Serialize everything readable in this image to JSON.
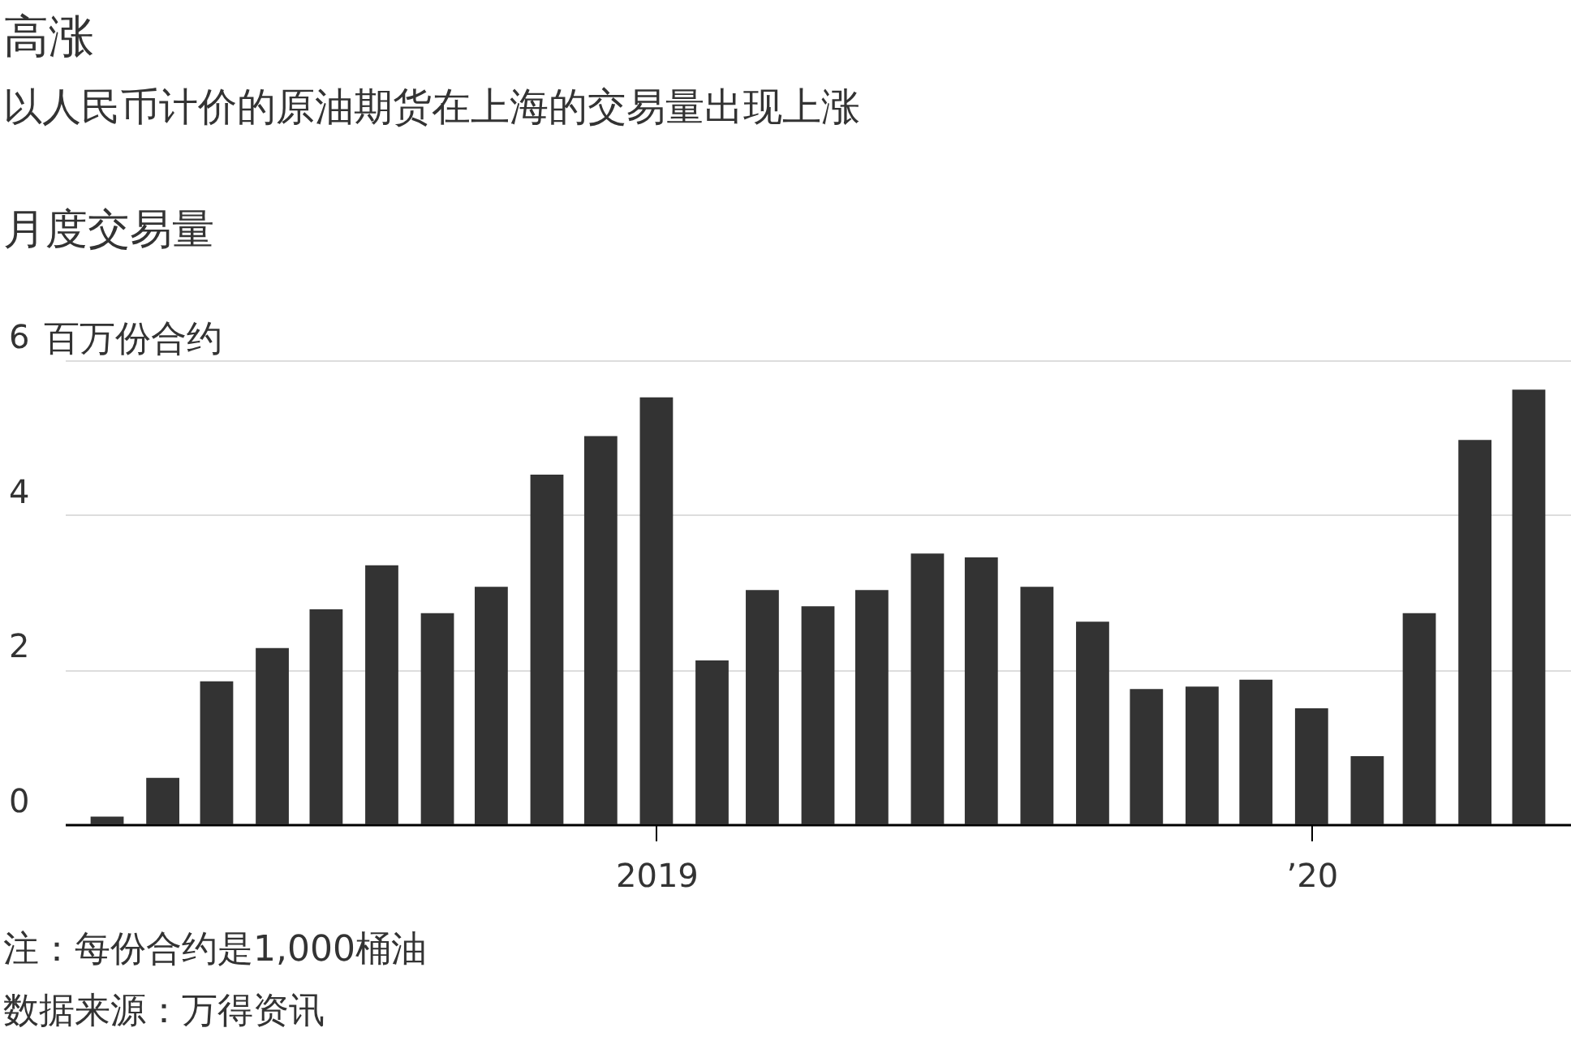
{
  "chart_data": {
    "type": "bar",
    "title": "高涨",
    "subtitle": "以人民币计价的原油期货在上海的交易量出现上涨",
    "ylabel": "百万份合约",
    "annotations": [
      "月度交易量",
      "注：每份合约是1,000桶油",
      "数据来源：万得资讯"
    ],
    "x": [
      "2018-03",
      "2018-04",
      "2018-05",
      "2018-06",
      "2018-07",
      "2018-08",
      "2018-09",
      "2018-10",
      "2018-11",
      "2018-12",
      "2019-01",
      "2019-02",
      "2019-03",
      "2019-04",
      "2019-05",
      "2019-06",
      "2019-07",
      "2019-08",
      "2019-09",
      "2019-10",
      "2019-11",
      "2019-12",
      "2020-01",
      "2020-02",
      "2020-03",
      "2020-04",
      "2020-05"
    ],
    "values": [
      0.1,
      0.6,
      1.85,
      2.28,
      2.78,
      3.35,
      2.73,
      3.07,
      4.52,
      5.02,
      5.52,
      2.12,
      3.03,
      2.82,
      3.03,
      3.5,
      3.45,
      3.07,
      2.62,
      1.75,
      1.78,
      1.87,
      1.5,
      0.88,
      2.73,
      4.97,
      5.62
    ],
    "color": "#333333",
    "xlim": [
      "2018-02-10",
      "2020-05-20"
    ],
    "xticks": [
      {
        "value": "2019-01",
        "label": "2019"
      },
      {
        "value": "2020-01",
        "label": "’20"
      }
    ],
    "ylim": [
      0,
      6
    ],
    "yticks": [
      0,
      2,
      4,
      6
    ],
    "grid": "y"
  }
}
